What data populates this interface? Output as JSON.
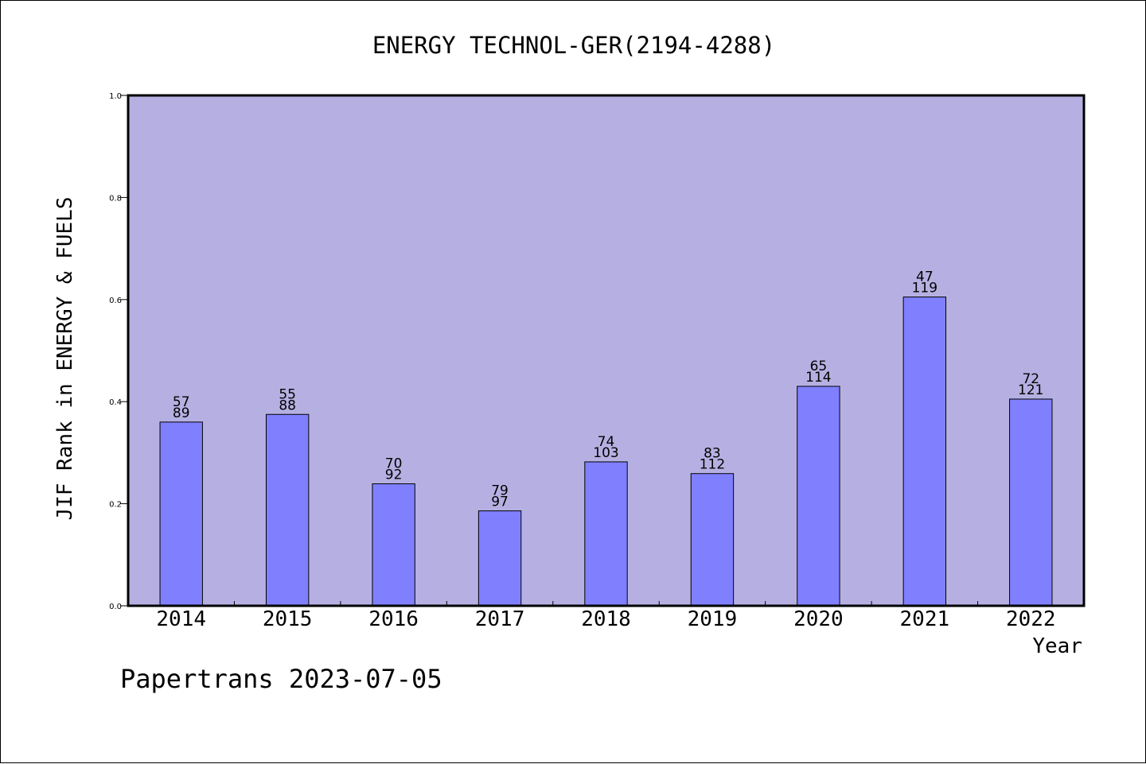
{
  "chart_data": {
    "type": "bar",
    "title": "ENERGY TECHNOL-GER(2194-4288)",
    "xlabel": "Year",
    "ylabel": "JIF Rank in ENERGY & FUELS",
    "ylim": [
      0,
      1.0
    ],
    "yticks": [
      "0.0",
      "0.2",
      "0.4",
      "0.6",
      "0.8",
      "1.0"
    ],
    "categories": [
      "2014",
      "2015",
      "2016",
      "2017",
      "2018",
      "2019",
      "2020",
      "2021",
      "2022"
    ],
    "values": [
      0.36,
      0.375,
      0.239,
      0.186,
      0.282,
      0.259,
      0.43,
      0.605,
      0.405
    ],
    "rank_labels": [
      "57",
      "55",
      "70",
      "79",
      "74",
      "83",
      "65",
      "47",
      "72"
    ],
    "total_labels": [
      "89",
      "88",
      "92",
      "97",
      "103",
      "112",
      "114",
      "119",
      "121"
    ],
    "grid": false,
    "legend": "none",
    "colors": {
      "plot_background": "#b6b0e2",
      "bar_fill": "#8080ff",
      "bar_stroke": "#000000"
    }
  },
  "footer": {
    "credit": "Papertrans 2023-07-05"
  }
}
